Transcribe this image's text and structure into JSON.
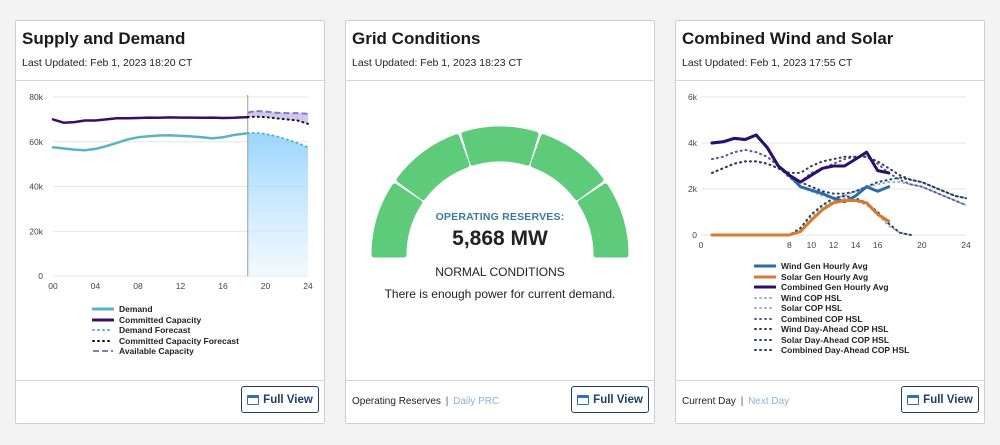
{
  "supply": {
    "title": "Supply and Demand",
    "updated": "Last Updated: Feb 1, 2023 18:20 CT",
    "full_view": "Full View",
    "legend": [
      {
        "label": "Demand",
        "color": "#5ab4c2",
        "style": "solid"
      },
      {
        "label": "Committed Capacity",
        "color": "#3a0d6b",
        "style": "solid"
      },
      {
        "label": "Demand Forecast",
        "color": "#5ab4c2",
        "style": "dotted"
      },
      {
        "label": "Committed Capacity Forecast",
        "color": "#111111",
        "style": "dotted"
      },
      {
        "label": "Available Capacity",
        "color": "#8a78c4",
        "style": "dashed"
      }
    ]
  },
  "grid": {
    "title": "Grid Conditions",
    "updated": "Last Updated: Feb 1, 2023 18:23 CT",
    "reserves_label": "OPERATING RESERVES:",
    "reserves_value": "5,868 MW",
    "condition": "NORMAL CONDITIONS",
    "message": "There is enough power for current demand.",
    "footer_active": "Operating Reserves",
    "footer_sep": "|",
    "footer_inactive": "Daily PRC",
    "full_view": "Full View",
    "gauge_color": "#5dcb7a",
    "gauge_level_segments": 5
  },
  "wind": {
    "title": "Combined Wind and Solar",
    "updated": "Last Updated: Feb 1, 2023 17:55 CT",
    "footer_active": "Current Day",
    "footer_sep": "|",
    "footer_inactive": "Next Day",
    "full_view": "Full View",
    "legend": [
      {
        "label": "Wind Gen Hourly Avg",
        "color": "#2e6aa8",
        "style": "solid"
      },
      {
        "label": "Solar Gen Hourly Avg",
        "color": "#d97a2c",
        "style": "solid"
      },
      {
        "label": "Combined Gen Hourly Avg",
        "color": "#2a0f6b",
        "style": "solid"
      },
      {
        "label": "Wind COP HSL",
        "color": "#8fb3d9",
        "style": "dotted"
      },
      {
        "label": "Solar COP HSL",
        "color": "#9ab0c4",
        "style": "dotted"
      },
      {
        "label": "Combined COP HSL",
        "color": "#5a5a9a",
        "style": "dotted"
      },
      {
        "label": "Wind Day-Ahead COP HSL",
        "color": "#2b3e5a",
        "style": "dotted"
      },
      {
        "label": "Solar Day-Ahead COP HSL",
        "color": "#2b3e5a",
        "style": "dotted"
      },
      {
        "label": "Combined Day-Ahead COP HSL",
        "color": "#2b3e5a",
        "style": "dotted"
      }
    ]
  },
  "chart_data": [
    {
      "type": "line",
      "xticks": [
        "00",
        "04",
        "08",
        "12",
        "16",
        "20",
        "24"
      ],
      "yticks": [
        "0",
        "20k",
        "40k",
        "60k",
        "80k"
      ],
      "xlim": [
        0,
        24
      ],
      "ylim": [
        0,
        80000
      ],
      "grid": true,
      "legend_position": "bottom",
      "series": [
        {
          "name": "Demand",
          "x": [
            0,
            1,
            2,
            3,
            4,
            5,
            6,
            7,
            8,
            9,
            10,
            11,
            12,
            13,
            14,
            15,
            16,
            17,
            18.33
          ],
          "values": [
            57500,
            57000,
            56500,
            56200,
            56800,
            58000,
            59500,
            61000,
            62000,
            62500,
            62800,
            62900,
            62600,
            62400,
            62000,
            61500,
            62000,
            63000,
            63800
          ]
        },
        {
          "name": "Committed Capacity",
          "x": [
            0,
            1,
            2,
            3,
            4,
            5,
            6,
            7,
            8,
            9,
            10,
            11,
            12,
            13,
            14,
            15,
            16,
            17,
            18.33
          ],
          "values": [
            70000,
            68500,
            68800,
            69500,
            69500,
            70000,
            70500,
            70500,
            70600,
            70800,
            70700,
            70900,
            70800,
            70800,
            70700,
            70800,
            70600,
            70700,
            71000
          ]
        },
        {
          "name": "Demand Forecast",
          "x": [
            18.33,
            19,
            20,
            21,
            22,
            23,
            24
          ],
          "values": [
            63800,
            64000,
            63500,
            62500,
            61000,
            59500,
            57500
          ]
        },
        {
          "name": "Committed Capacity Forecast",
          "x": [
            18.33,
            19,
            20,
            21,
            22,
            23,
            24
          ],
          "values": [
            71000,
            71200,
            71000,
            70500,
            70000,
            69500,
            68000
          ]
        },
        {
          "name": "Available Capacity",
          "x": [
            18.33,
            19,
            20,
            21,
            22,
            23,
            24
          ],
          "values": [
            73000,
            73800,
            73500,
            73000,
            72800,
            72800,
            72500
          ]
        }
      ]
    },
    {
      "type": "line",
      "xticks": [
        "0",
        "8",
        "10",
        "12",
        "14",
        "16",
        "20",
        "24"
      ],
      "xtick_values": [
        0,
        8,
        10,
        12,
        14,
        16,
        20,
        24
      ],
      "yticks": [
        "0",
        "2k",
        "4k",
        "6k"
      ],
      "xlim": [
        0,
        24
      ],
      "ylim": [
        0,
        6000
      ],
      "grid": true,
      "legend_position": "bottom",
      "series": [
        {
          "name": "Wind Gen Hourly Avg",
          "x": [
            1,
            2,
            3,
            4,
            5,
            6,
            7,
            8,
            9,
            10,
            11,
            12,
            13,
            14,
            15,
            16,
            17
          ],
          "values": [
            4000,
            4050,
            4200,
            4150,
            4350,
            3800,
            3000,
            2600,
            2100,
            1950,
            1800,
            1600,
            1450,
            1700,
            2100,
            1900,
            2100
          ]
        },
        {
          "name": "Solar Gen Hourly Avg",
          "x": [
            1,
            2,
            3,
            4,
            5,
            6,
            7,
            8,
            9,
            10,
            11,
            12,
            13,
            14,
            15,
            16,
            17
          ],
          "values": [
            0,
            0,
            0,
            0,
            0,
            0,
            0,
            0,
            150,
            650,
            1100,
            1400,
            1500,
            1500,
            1400,
            900,
            600
          ]
        },
        {
          "name": "Combined Gen Hourly Avg",
          "x": [
            1,
            2,
            3,
            4,
            5,
            6,
            7,
            8,
            9,
            10,
            11,
            12,
            13,
            14,
            15,
            16,
            17
          ],
          "values": [
            4000,
            4050,
            4200,
            4150,
            4350,
            3800,
            3000,
            2600,
            2300,
            2600,
            2900,
            3000,
            3000,
            3300,
            3600,
            2800,
            2700
          ]
        },
        {
          "name": "Wind COP HSL",
          "x": [
            1,
            2,
            3,
            4,
            5,
            6,
            7,
            8,
            9,
            10,
            11,
            12,
            13,
            14,
            15,
            16,
            17,
            18,
            19,
            20,
            21,
            22,
            23,
            24
          ],
          "values": [
            3300,
            3400,
            3600,
            3700,
            3600,
            3400,
            3000,
            2500,
            2100,
            1900,
            1700,
            1600,
            1700,
            1900,
            2100,
            2200,
            2300,
            2300,
            2200,
            2100,
            1900,
            1700,
            1500,
            1300
          ]
        },
        {
          "name": "Solar COP HSL",
          "x": [
            1,
            4,
            8,
            9,
            10,
            11,
            12,
            13,
            14,
            15,
            16,
            17,
            18,
            19
          ],
          "values": [
            0,
            0,
            0,
            200,
            800,
            1200,
            1500,
            1600,
            1500,
            1300,
            900,
            400,
            100,
            0
          ]
        },
        {
          "name": "Combined COP HSL",
          "x": [
            1,
            2,
            3,
            4,
            5,
            6,
            7,
            8,
            9,
            10,
            11,
            12,
            13,
            14,
            15,
            16,
            17,
            18,
            19,
            20,
            21,
            22,
            23,
            24
          ],
          "values": [
            3300,
            3400,
            3600,
            3700,
            3600,
            3400,
            3000,
            2500,
            2300,
            2700,
            2900,
            3100,
            3300,
            3400,
            3400,
            3100,
            2700,
            2400,
            2200,
            2100,
            1900,
            1700,
            1500,
            1300
          ]
        },
        {
          "name": "Wind Day-Ahead COP HSL",
          "x": [
            1,
            2,
            3,
            4,
            5,
            6,
            7,
            8,
            9,
            10,
            11,
            12,
            13,
            14,
            15,
            16,
            17,
            18,
            19,
            20,
            21,
            22,
            23,
            24
          ],
          "values": [
            2700,
            2900,
            3100,
            3200,
            3200,
            3100,
            2900,
            2600,
            2300,
            2100,
            1900,
            1800,
            1800,
            1900,
            2100,
            2300,
            2400,
            2500,
            2400,
            2300,
            2100,
            1900,
            1700,
            1600
          ]
        },
        {
          "name": "Solar Day-Ahead COP HSL",
          "x": [
            1,
            4,
            8,
            9,
            10,
            11,
            12,
            13,
            14,
            15,
            16,
            17,
            18,
            19
          ],
          "values": [
            0,
            0,
            0,
            300,
            900,
            1300,
            1600,
            1700,
            1600,
            1400,
            1000,
            500,
            100,
            0
          ]
        },
        {
          "name": "Combined Day-Ahead COP HSL",
          "x": [
            1,
            2,
            3,
            4,
            5,
            6,
            7,
            8,
            9,
            10,
            11,
            12,
            13,
            14,
            15,
            16,
            17,
            18,
            19,
            20,
            21,
            22,
            23,
            24
          ],
          "values": [
            2700,
            2900,
            3100,
            3200,
            3200,
            3100,
            2900,
            2700,
            2700,
            3000,
            3200,
            3300,
            3400,
            3400,
            3400,
            3200,
            2900,
            2600,
            2400,
            2300,
            2100,
            1900,
            1700,
            1600
          ]
        }
      ]
    }
  ]
}
